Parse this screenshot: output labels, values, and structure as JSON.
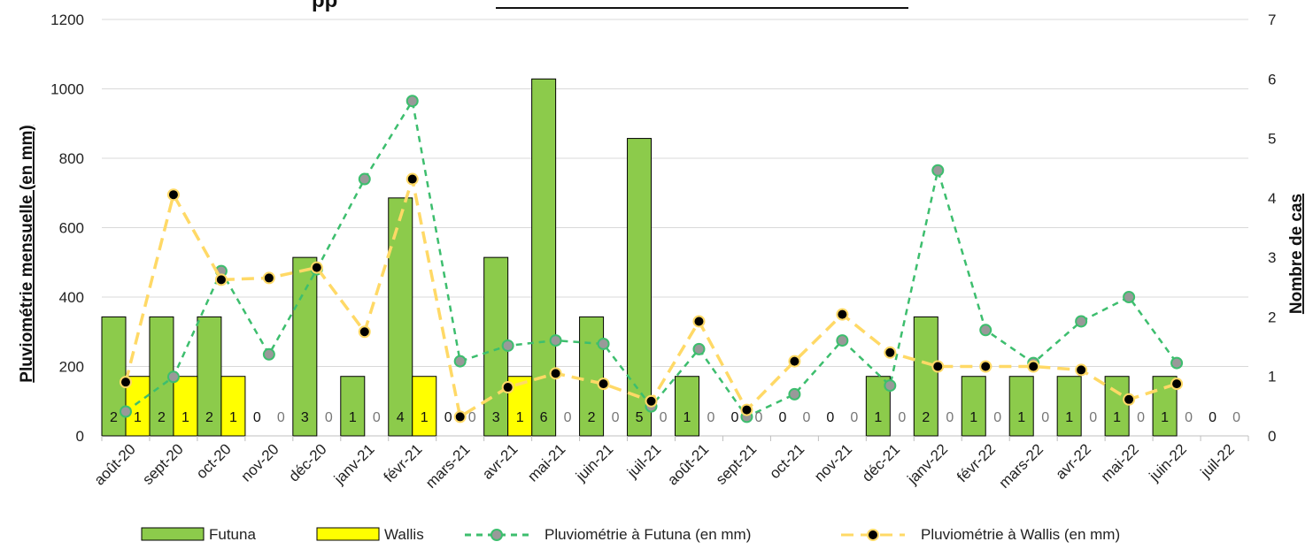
{
  "chart_data": {
    "type": "bar",
    "title_visible": "pp",
    "categories": [
      "août-20",
      "sept-20",
      "oct-20",
      "nov-20",
      "déc-20",
      "janv-21",
      "févr-21",
      "mars-21",
      "avr-21",
      "mai-21",
      "juin-21",
      "juil-21",
      "août-21",
      "sept-21",
      "oct-21",
      "nov-21",
      "déc-21",
      "janv-22",
      "févr-22",
      "mars-22",
      "avr-22",
      "mai-22",
      "juin-22",
      "juil-22"
    ],
    "ylabel": "Pluviométrie mensuelle (en mm)",
    "y2label": "Nombre de cas",
    "ylim": [
      0,
      1200
    ],
    "y2lim": [
      0,
      7
    ],
    "yticks": [
      "0",
      "200",
      "400",
      "600",
      "800",
      "1000",
      "1200"
    ],
    "y2ticks": [
      "0",
      "1",
      "2",
      "3",
      "4",
      "5",
      "6",
      "7"
    ],
    "grid": true,
    "legend_position": "bottom",
    "series": [
      {
        "name": "Futuna",
        "kind": "bar",
        "axis": "right",
        "color": "#8CCB4B",
        "values": [
          2,
          2,
          2,
          0,
          3,
          1,
          4,
          0,
          3,
          6,
          2,
          5,
          1,
          0,
          0,
          0,
          1,
          2,
          1,
          1,
          1,
          1,
          1,
          0
        ],
        "labels": [
          "2",
          "2",
          "2",
          "0",
          "3",
          "1",
          "4",
          "0",
          "3",
          "6",
          "2",
          "5",
          "1",
          "0",
          "0",
          "0",
          "1",
          "2",
          "1",
          "1",
          "1",
          "1",
          "1",
          "0"
        ]
      },
      {
        "name": "Wallis",
        "kind": "bar",
        "axis": "right",
        "color": "#FFFF00",
        "values": [
          1,
          1,
          1,
          0,
          0,
          0,
          1,
          0,
          1,
          0,
          0,
          0,
          0,
          0,
          0,
          0,
          0,
          0,
          0,
          0,
          0,
          0,
          0,
          0
        ],
        "labels": [
          "1",
          "1",
          "1",
          "0",
          "0",
          "0",
          "1",
          "0",
          "1",
          "0",
          "0",
          "0",
          "0",
          "0",
          "0",
          "0",
          "0",
          "0",
          "0",
          "0",
          "0",
          "0",
          "0",
          "0"
        ]
      },
      {
        "name": "Pluviométrie à Futuna (en mm)",
        "kind": "line",
        "axis": "left",
        "color": "#3DBE6E",
        "marker_color": "#999999",
        "values": [
          70,
          170,
          475,
          235,
          480,
          740,
          965,
          215,
          260,
          275,
          265,
          85,
          250,
          55,
          120,
          275,
          145,
          765,
          305,
          210,
          330,
          400,
          210,
          null
        ]
      },
      {
        "name": "Pluviométrie à Wallis (en mm)",
        "kind": "line",
        "axis": "left",
        "color": "#FFD966",
        "marker_color": "#000000",
        "values": [
          155,
          695,
          450,
          455,
          485,
          300,
          740,
          55,
          140,
          180,
          150,
          100,
          330,
          75,
          215,
          350,
          240,
          200,
          200,
          200,
          190,
          105,
          150,
          null
        ]
      }
    ]
  }
}
